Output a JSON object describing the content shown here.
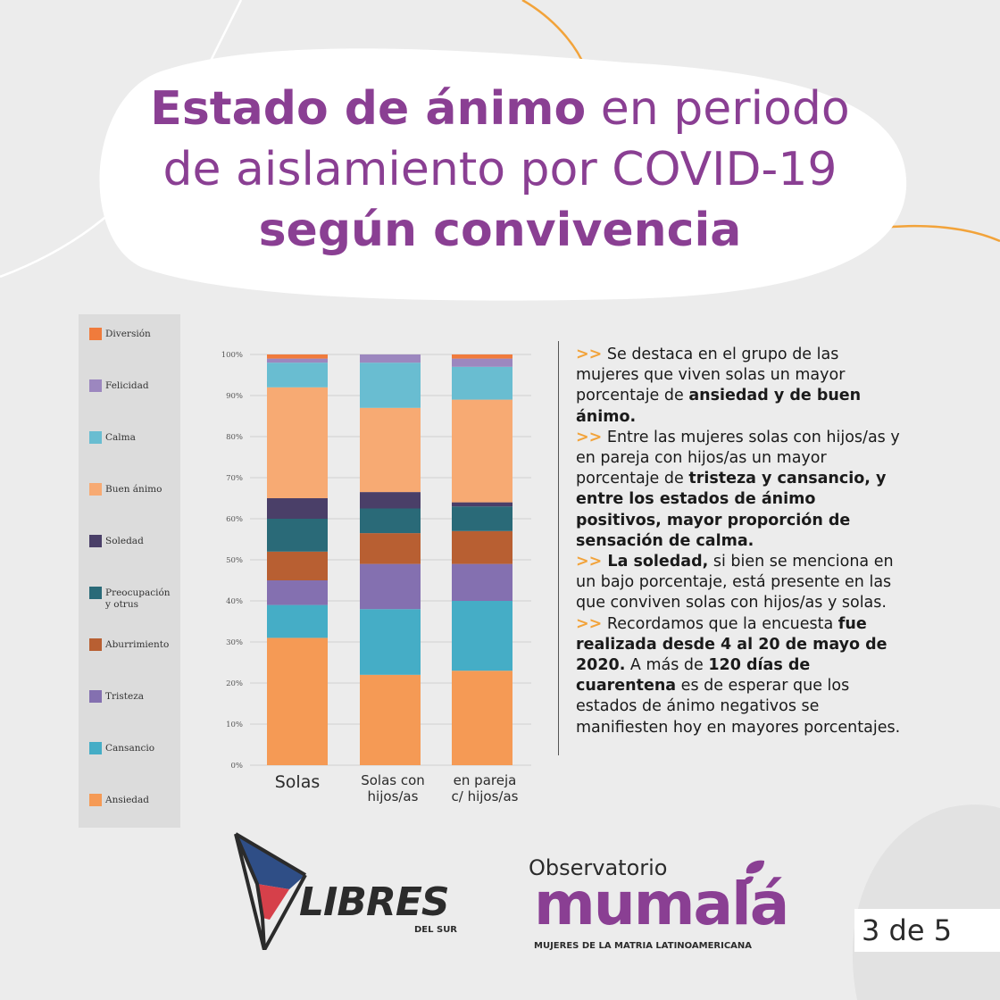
{
  "title": {
    "line1_bold": "Estado de ánimo",
    "line1_rest": " en periodo",
    "line2": "de aislamiento por COVID-19",
    "line3_bold": "según convivencia"
  },
  "colors": {
    "brand_purple": "#8a3f93",
    "arrow_orange": "#f2a33a",
    "background": "#ececec"
  },
  "chart_data": {
    "type": "bar",
    "stacked": true,
    "categories": [
      "Solas",
      "Solas con hijos/as",
      "en pareja c/ hijos/as"
    ],
    "category_lines": [
      [
        "Solas"
      ],
      [
        "Solas con",
        "hijos/as"
      ],
      [
        "en pareja",
        "c/ hijos/as"
      ]
    ],
    "yticks": [
      "0%",
      "10%",
      "20%",
      "30%",
      "40%",
      "50%",
      "60%",
      "70%",
      "80%",
      "90%",
      "100%"
    ],
    "ylim": [
      0,
      100
    ],
    "grid": true,
    "legend_position": "left",
    "series": [
      {
        "name": "Ansiedad",
        "color": "#f59a55",
        "values": [
          31,
          22,
          23
        ]
      },
      {
        "name": "Cansancio",
        "color": "#45adc6",
        "values": [
          8,
          16,
          17
        ]
      },
      {
        "name": "Tristeza",
        "color": "#8470b0",
        "values": [
          6,
          11,
          9
        ]
      },
      {
        "name": "Aburrimiento",
        "color": "#b85f32",
        "values": [
          7,
          7.5,
          8
        ]
      },
      {
        "name": "Preocupación y otrus",
        "color": "#2a6a78",
        "values": [
          8,
          6,
          6
        ]
      },
      {
        "name": "Soledad",
        "color": "#4a3f68",
        "values": [
          5,
          4,
          1
        ]
      },
      {
        "name": "Buen ánimo",
        "color": "#f7aa73",
        "values": [
          27,
          20.5,
          25
        ]
      },
      {
        "name": "Calma",
        "color": "#69bdd1",
        "values": [
          6,
          11,
          8
        ]
      },
      {
        "name": "Felicidad",
        "color": "#9c87bf",
        "values": [
          1,
          2,
          2
        ]
      },
      {
        "name": "Diversión",
        "color": "#f07b3c",
        "values": [
          1,
          0,
          1
        ]
      }
    ]
  },
  "legend_order": [
    "Diversión",
    "Felicidad",
    "Calma",
    "Buen ánimo",
    "Soledad",
    "Preocupación y otrus",
    "Aburrimiento",
    "Tristeza",
    "Cansancio",
    "Ansiedad"
  ],
  "text": {
    "arrow": ">>",
    "p1": [
      {
        "t": " Se destaca en el grupo de las mujeres que viven solas un mayor porcentaje de ",
        "b": false
      },
      {
        "t": "ansiedad y de buen ánimo.",
        "b": true
      }
    ],
    "p2": [
      {
        "t": " Entre las mujeres solas con hijos/as y en pareja con hijos/as un mayor porcentaje de ",
        "b": false
      },
      {
        "t": "tristeza y cansancio, y entre los estados de ánimo positivos, mayor proporción de sensación de calma.",
        "b": true
      }
    ],
    "p3": [
      {
        "t": " La soledad,",
        "b": true
      },
      {
        "t": " si bien se menciona en un bajo porcentaje, está presente en las que conviven solas con hijos/as y solas.",
        "b": false
      }
    ],
    "p4": [
      {
        "t": " Recordamos que la encuesta ",
        "b": false
      },
      {
        "t": "fue realizada desde 4 al 20 de mayo de 2020.",
        "b": true
      },
      {
        "t": " A más de ",
        "b": false
      },
      {
        "t": "120 días de cuarentena",
        "b": true
      },
      {
        "t": " es de esperar que los estados de ánimo negativos se manifiesten hoy en mayores porcentajes.",
        "b": false
      }
    ]
  },
  "logos": {
    "libres_word": "LIBRES",
    "libres_sub": "DEL SUR",
    "observatorio": "Observatorio",
    "mumala": "mumalá",
    "mumala_sub": "MUJERES DE LA MATRIA LATINOAMERICANA"
  },
  "page_indicator": "3 de 5"
}
